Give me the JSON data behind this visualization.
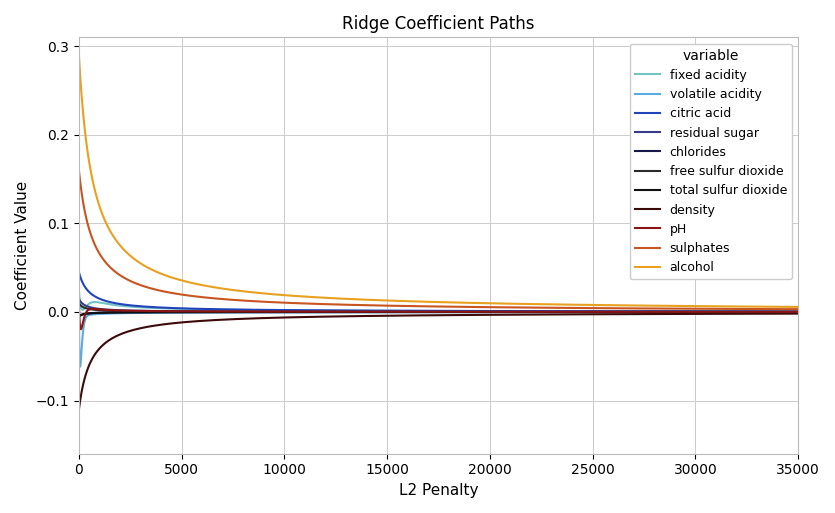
{
  "title": "Ridge Coefficient Paths",
  "xlabel": "L2 Penalty",
  "ylabel": "Coefficient Value",
  "xlim": [
    0,
    35000
  ],
  "ylim": [
    -0.16,
    0.31
  ],
  "variables": [
    "fixed acidity",
    "volatile acidity",
    "citric acid",
    "residual sugar",
    "chlorides",
    "free sulfur dioxide",
    "total sulfur dioxide",
    "density",
    "pH",
    "sulphates",
    "alcohol"
  ],
  "color_map": {
    "fixed acidity": "#72c4c4",
    "volatile acidity": "#5aabde",
    "citric acid": "#2244bb",
    "residual sugar": "#3a3a8a",
    "chlorides": "#18184a",
    "free sulfur dioxide": "#2a2a2a",
    "total sulfur dioxide": "#111111",
    "density": "#3d0a0a",
    "pH": "#8b1515",
    "sulphates": "#c85520",
    "alcohol": "#e8a020"
  },
  "curve_params": {
    "alcohol": {
      "type": "simple",
      "ols": 0.29,
      "k": 700
    },
    "sulphates": {
      "type": "simple",
      "ols": 0.16,
      "k": 700
    },
    "citric acid": {
      "type": "simple",
      "ols": 0.045,
      "k": 500
    },
    "fixed acidity": {
      "type": "complex",
      "ols": 0.025,
      "k": 800,
      "dip": -0.05,
      "dip_k": 150
    },
    "volatile acidity": {
      "type": "complex",
      "ols": -0.005,
      "k": 800,
      "dip": -0.155,
      "dip_k": 60
    },
    "density": {
      "type": "simple",
      "ols": -0.11,
      "k": 600
    },
    "pH": {
      "type": "complex",
      "ols": 0.01,
      "k": 400,
      "dip": -0.075,
      "dip_k": 90
    },
    "residual sugar": {
      "type": "simple",
      "ols": 0.015,
      "k": 300
    },
    "chlorides": {
      "type": "simple",
      "ols": -0.005,
      "k": 200
    },
    "free sulfur dioxide": {
      "type": "simple",
      "ols": 0.01,
      "k": 250
    },
    "total sulfur dioxide": {
      "type": "simple",
      "ols": -0.005,
      "k": 250
    }
  },
  "xticks": [
    0,
    5000,
    10000,
    15000,
    20000,
    25000,
    30000,
    35000
  ]
}
